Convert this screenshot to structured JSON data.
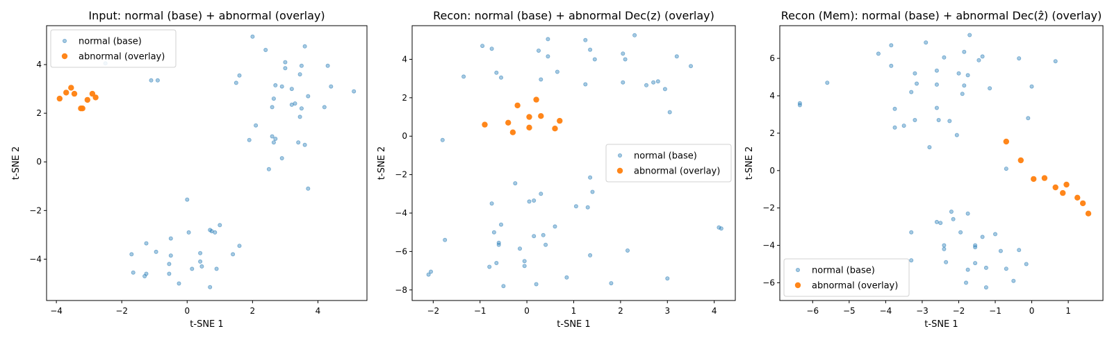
{
  "chart_data": [
    {
      "type": "scatter",
      "title": "Input: normal (base) + abnormal (overlay)",
      "xlabel": "t-SNE 1",
      "ylabel": "t-SNE 2",
      "xlim": [
        -4.3,
        5.5
      ],
      "ylim": [
        -5.7,
        5.6
      ],
      "xticks": [
        -4,
        -2,
        0,
        2,
        4
      ],
      "yticks": [
        -4,
        -2,
        0,
        2,
        4
      ],
      "legend": "upper left",
      "series": [
        {
          "name": "normal (base)",
          "color": "#1f77b4",
          "points": [
            [
              -2.5,
              4.05
            ],
            [
              -1.1,
              3.35
            ],
            [
              -0.9,
              3.35
            ],
            [
              2.0,
              5.15
            ],
            [
              2.4,
              4.6
            ],
            [
              1.5,
              3.25
            ],
            [
              1.6,
              3.55
            ],
            [
              2.1,
              1.5
            ],
            [
              1.9,
              0.9
            ],
            [
              2.6,
              2.25
            ],
            [
              2.65,
              2.6
            ],
            [
              2.7,
              3.15
            ],
            [
              2.9,
              3.1
            ],
            [
              3.0,
              3.85
            ],
            [
              3.0,
              4.1
            ],
            [
              3.2,
              3.0
            ],
            [
              3.2,
              2.35
            ],
            [
              3.45,
              3.6
            ],
            [
              3.5,
              3.95
            ],
            [
              3.5,
              2.2
            ],
            [
              3.45,
              1.85
            ],
            [
              3.6,
              4.75
            ],
            [
              3.7,
              2.7
            ],
            [
              3.6,
              0.7
            ],
            [
              3.4,
              0.8
            ],
            [
              3.7,
              -1.1
            ],
            [
              2.9,
              0.15
            ],
            [
              2.5,
              -0.3
            ],
            [
              2.6,
              1.05
            ],
            [
              2.7,
              0.95
            ],
            [
              2.65,
              0.8
            ],
            [
              3.3,
              2.4
            ],
            [
              4.2,
              2.25
            ],
            [
              4.3,
              3.95
            ],
            [
              4.4,
              3.1
            ],
            [
              5.1,
              2.9
            ],
            [
              0.0,
              -1.55
            ],
            [
              0.05,
              -2.9
            ],
            [
              0.7,
              -2.8
            ],
            [
              0.75,
              -2.85
            ],
            [
              0.85,
              -2.9
            ],
            [
              1.0,
              -2.6
            ],
            [
              0.4,
              -3.75
            ],
            [
              1.4,
              -3.8
            ],
            [
              1.6,
              -3.45
            ],
            [
              -0.5,
              -3.15
            ],
            [
              -1.25,
              -3.35
            ],
            [
              -1.7,
              -3.8
            ],
            [
              -1.65,
              -4.55
            ],
            [
              -1.3,
              -4.7
            ],
            [
              -1.25,
              -4.6
            ],
            [
              -0.95,
              -3.7
            ],
            [
              -0.5,
              -3.85
            ],
            [
              -0.55,
              -4.2
            ],
            [
              -0.55,
              -4.6
            ],
            [
              -0.25,
              -5.0
            ],
            [
              0.15,
              -4.4
            ],
            [
              0.4,
              -4.1
            ],
            [
              0.45,
              -4.3
            ],
            [
              0.9,
              -4.4
            ],
            [
              0.7,
              -5.15
            ]
          ]
        },
        {
          "name": "abnormal (overlay)",
          "color": "#ff7f0e",
          "points": [
            [
              -3.9,
              2.6
            ],
            [
              -3.7,
              2.85
            ],
            [
              -3.55,
              3.05
            ],
            [
              -3.45,
              2.8
            ],
            [
              -3.25,
              2.2
            ],
            [
              -3.2,
              2.2
            ],
            [
              -3.05,
              2.55
            ],
            [
              -2.9,
              2.8
            ],
            [
              -2.8,
              2.65
            ]
          ]
        }
      ]
    },
    {
      "type": "scatter",
      "title": "Recon: normal (base) + abnormal Dec(z) (overlay)",
      "xlabel": "t-SNE 1",
      "ylabel": "t-SNE 2",
      "xlim": [
        -2.45,
        4.45
      ],
      "ylim": [
        -8.55,
        5.75
      ],
      "xticks": [
        -2,
        -1,
        0,
        1,
        2,
        3,
        4
      ],
      "yticks": [
        -8,
        -6,
        -4,
        -2,
        0,
        2,
        4
      ],
      "legend": "center right",
      "series": [
        {
          "name": "normal (base)",
          "color": "#1f77b4",
          "points": [
            [
              -1.8,
              -0.2
            ],
            [
              -1.35,
              3.1
            ],
            [
              -0.95,
              4.7
            ],
            [
              -0.75,
              4.55
            ],
            [
              -0.65,
              3.3
            ],
            [
              -0.55,
              3.05
            ],
            [
              0.25,
              4.45
            ],
            [
              0.45,
              4.15
            ],
            [
              0.45,
              5.05
            ],
            [
              0.65,
              3.35
            ],
            [
              0.3,
              2.95
            ],
            [
              1.25,
              5.0
            ],
            [
              1.35,
              4.5
            ],
            [
              1.45,
              4.0
            ],
            [
              1.25,
              2.7
            ],
            [
              2.05,
              4.3
            ],
            [
              2.1,
              4.0
            ],
            [
              2.05,
              2.8
            ],
            [
              2.3,
              5.25
            ],
            [
              2.55,
              2.65
            ],
            [
              2.7,
              2.8
            ],
            [
              2.8,
              2.85
            ],
            [
              2.95,
              2.45
            ],
            [
              3.05,
              1.25
            ],
            [
              3.2,
              4.15
            ],
            [
              3.5,
              3.65
            ],
            [
              -1.75,
              -5.4
            ],
            [
              -2.1,
              -7.2
            ],
            [
              -2.05,
              -7.05
            ],
            [
              -0.8,
              -6.8
            ],
            [
              -0.65,
              -6.6
            ],
            [
              -0.75,
              -3.5
            ],
            [
              -0.7,
              -5.0
            ],
            [
              -0.6,
              -5.55
            ],
            [
              -0.6,
              -5.65
            ],
            [
              -0.55,
              -4.6
            ],
            [
              -0.5,
              -7.8
            ],
            [
              -0.25,
              -2.45
            ],
            [
              -0.15,
              -5.85
            ],
            [
              -0.05,
              -6.5
            ],
            [
              -0.05,
              -6.75
            ],
            [
              0.05,
              -3.4
            ],
            [
              0.15,
              -3.35
            ],
            [
              0.15,
              -5.2
            ],
            [
              0.2,
              -7.7
            ],
            [
              0.3,
              -3.0
            ],
            [
              0.35,
              -5.15
            ],
            [
              0.4,
              -5.65
            ],
            [
              0.6,
              -4.7
            ],
            [
              0.85,
              -7.35
            ],
            [
              1.05,
              -3.65
            ],
            [
              1.3,
              -3.7
            ],
            [
              1.35,
              -2.15
            ],
            [
              1.4,
              -2.9
            ],
            [
              1.35,
              -6.2
            ],
            [
              1.8,
              -7.65
            ],
            [
              2.15,
              -5.95
            ],
            [
              3.0,
              -7.4
            ],
            [
              4.1,
              -4.75
            ],
            [
              4.15,
              -4.8
            ]
          ]
        },
        {
          "name": "abnormal (overlay)",
          "color": "#ff7f0e",
          "points": [
            [
              -0.9,
              0.6
            ],
            [
              -0.4,
              0.7
            ],
            [
              -0.3,
              0.2
            ],
            [
              -0.2,
              1.6
            ],
            [
              0.05,
              0.45
            ],
            [
              0.05,
              1.0
            ],
            [
              0.2,
              1.9
            ],
            [
              0.3,
              1.05
            ],
            [
              0.6,
              0.4
            ],
            [
              0.7,
              0.8
            ]
          ]
        }
      ]
    },
    {
      "type": "scatter",
      "title": "Recon (Mem): normal (base) + abnormal Dec(ẑ) (overlay)",
      "xlabel": "t-SNE 1",
      "ylabel": "t-SNE 2",
      "xlim": [
        -6.9,
        1.95
      ],
      "ylim": [
        -6.95,
        7.75
      ],
      "xticks": [
        -6,
        -5,
        -4,
        -3,
        -2,
        -1,
        0,
        1
      ],
      "yticks": [
        -6,
        -4,
        -2,
        0,
        2,
        4,
        6
      ],
      "legend": "lower left",
      "series": [
        {
          "name": "normal (base)",
          "color": "#1f77b4",
          "points": [
            [
              -6.35,
              3.5
            ],
            [
              -6.35,
              3.6
            ],
            [
              -5.6,
              4.7
            ],
            [
              -4.2,
              6.25
            ],
            [
              -3.85,
              6.7
            ],
            [
              -3.85,
              5.6
            ],
            [
              -3.75,
              3.3
            ],
            [
              -3.75,
              2.3
            ],
            [
              -3.5,
              2.4
            ],
            [
              -3.3,
              4.2
            ],
            [
              -3.2,
              5.2
            ],
            [
              -3.15,
              4.65
            ],
            [
              -3.2,
              2.7
            ],
            [
              -2.9,
              6.85
            ],
            [
              -2.8,
              1.25
            ],
            [
              -2.6,
              5.35
            ],
            [
              -2.6,
              4.6
            ],
            [
              -2.6,
              3.35
            ],
            [
              -2.55,
              2.7
            ],
            [
              -2.4,
              6.05
            ],
            [
              -2.25,
              2.65
            ],
            [
              -2.05,
              1.9
            ],
            [
              -2.0,
              5.2
            ],
            [
              -1.9,
              4.1
            ],
            [
              -1.85,
              4.55
            ],
            [
              -1.85,
              6.35
            ],
            [
              -1.75,
              5.1
            ],
            [
              -1.7,
              7.25
            ],
            [
              -1.45,
              5.9
            ],
            [
              -1.35,
              6.1
            ],
            [
              -1.15,
              4.4
            ],
            [
              -0.35,
              6.0
            ],
            [
              -0.1,
              2.8
            ],
            [
              0.0,
              4.5
            ],
            [
              0.65,
              5.85
            ],
            [
              -0.7,
              0.1
            ],
            [
              -3.3,
              -3.3
            ],
            [
              -3.3,
              -4.8
            ],
            [
              -2.6,
              -2.75
            ],
            [
              -2.5,
              -2.8
            ],
            [
              -2.4,
              -4.0
            ],
            [
              -2.4,
              -4.2
            ],
            [
              -2.35,
              -4.9
            ],
            [
              -2.2,
              -2.2
            ],
            [
              -2.15,
              -2.6
            ],
            [
              -1.95,
              -3.3
            ],
            [
              -1.75,
              -2.3
            ],
            [
              -1.75,
              -5.3
            ],
            [
              -1.55,
              -4.0
            ],
            [
              -1.55,
              -4.1
            ],
            [
              -1.55,
              -4.95
            ],
            [
              -1.35,
              -3.55
            ],
            [
              -1.25,
              -5.2
            ],
            [
              -1.25,
              -6.25
            ],
            [
              -1.0,
              -3.4
            ],
            [
              -0.85,
              -4.3
            ],
            [
              -0.7,
              -5.25
            ],
            [
              -0.5,
              -5.9
            ],
            [
              -0.35,
              -4.25
            ],
            [
              -0.15,
              -5.0
            ],
            [
              -1.8,
              -6.0
            ]
          ]
        },
        {
          "name": "abnormal (overlay)",
          "color": "#ff7f0e",
          "points": [
            [
              -0.7,
              1.55
            ],
            [
              -0.3,
              0.55
            ],
            [
              0.05,
              -0.45
            ],
            [
              0.35,
              -0.4
            ],
            [
              0.65,
              -0.9
            ],
            [
              0.85,
              -1.2
            ],
            [
              0.95,
              -0.75
            ],
            [
              1.25,
              -1.45
            ],
            [
              1.4,
              -1.75
            ],
            [
              1.55,
              -2.3
            ]
          ]
        }
      ]
    }
  ]
}
